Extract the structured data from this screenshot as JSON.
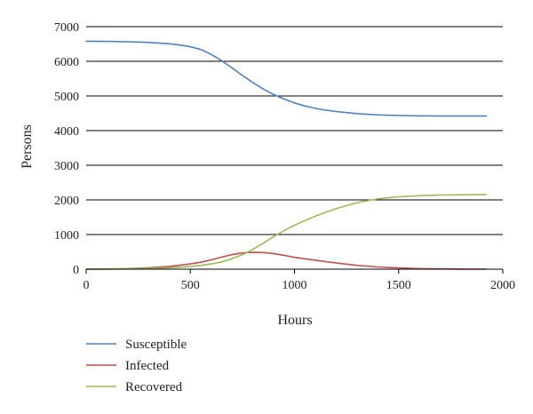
{
  "chart_data": {
    "type": "line",
    "title": "",
    "xlabel": "Hours",
    "ylabel": "Persons",
    "xlim": [
      0,
      2000
    ],
    "ylim": [
      0,
      7000
    ],
    "x_ticks": [
      "0",
      "500",
      "1000",
      "1500",
      "2000"
    ],
    "y_ticks": [
      "0",
      "1000",
      "2000",
      "3000",
      "4000",
      "5000",
      "6000",
      "7000"
    ],
    "grid": "horizontal",
    "legend_position": "bottom-left",
    "series": [
      {
        "name": "Susceptible",
        "color": "#4f81bd",
        "x": [
          0,
          100,
          200,
          300,
          400,
          450,
          500,
          550,
          600,
          650,
          700,
          750,
          800,
          850,
          900,
          950,
          1000,
          1050,
          1100,
          1150,
          1200,
          1300,
          1400,
          1500,
          1600,
          1700,
          1800,
          1920
        ],
        "y": [
          6580,
          6575,
          6565,
          6545,
          6505,
          6470,
          6420,
          6340,
          6200,
          6020,
          5810,
          5590,
          5390,
          5200,
          5040,
          4910,
          4800,
          4710,
          4640,
          4590,
          4550,
          4490,
          4455,
          4435,
          4425,
          4420,
          4420,
          4420
        ]
      },
      {
        "name": "Infected",
        "color": "#c0504d",
        "x": [
          0,
          100,
          200,
          300,
          400,
          500,
          550,
          600,
          650,
          700,
          750,
          800,
          850,
          900,
          950,
          1000,
          1100,
          1200,
          1300,
          1400,
          1500,
          1600,
          1700,
          1800,
          1920
        ],
        "y": [
          0,
          5,
          15,
          40,
          80,
          150,
          200,
          270,
          350,
          420,
          470,
          490,
          480,
          450,
          400,
          340,
          260,
          180,
          110,
          65,
          35,
          15,
          8,
          3,
          0
        ]
      },
      {
        "name": "Recovered",
        "color": "#9bbb59",
        "x": [
          0,
          100,
          200,
          300,
          400,
          500,
          550,
          600,
          650,
          700,
          750,
          800,
          850,
          900,
          950,
          1000,
          1100,
          1200,
          1300,
          1400,
          1500,
          1600,
          1700,
          1800,
          1920
        ],
        "y": [
          0,
          3,
          8,
          20,
          40,
          80,
          110,
          150,
          210,
          300,
          420,
          570,
          750,
          940,
          1110,
          1270,
          1530,
          1750,
          1920,
          2030,
          2090,
          2120,
          2140,
          2145,
          2150
        ]
      }
    ]
  }
}
